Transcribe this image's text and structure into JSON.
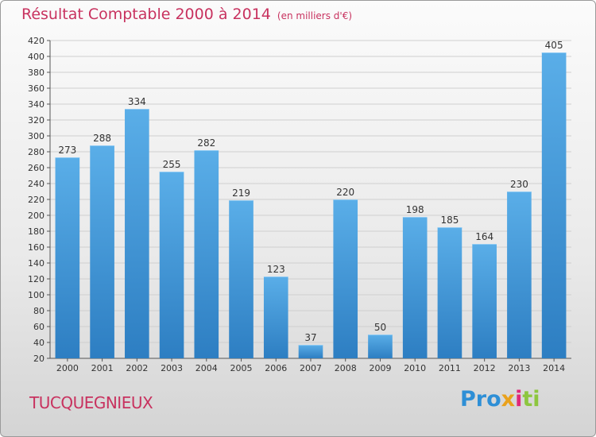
{
  "header": {
    "title": "Résultat Comptable 2000 à 2014",
    "subtitle": "(en milliers d'€)"
  },
  "footer": {
    "commune": "TUCQUEGNIEUX",
    "brand": [
      "Pro",
      "x",
      "i",
      "ti"
    ]
  },
  "colors": {
    "title": "#c8325f",
    "bar_top": "#5aaee8",
    "bar_bottom": "#2d7ec2",
    "grid": "#cfcfcf",
    "axis": "#555555"
  },
  "chart_data": {
    "type": "bar",
    "title": "Résultat Comptable 2000 à 2014",
    "subtitle": "(en milliers d'€)",
    "categories": [
      "2000",
      "2001",
      "2002",
      "2003",
      "2004",
      "2005",
      "2006",
      "2007",
      "2008",
      "2009",
      "2010",
      "2011",
      "2012",
      "2013",
      "2014"
    ],
    "values": [
      273,
      288,
      334,
      255,
      282,
      219,
      123,
      37,
      220,
      50,
      198,
      185,
      164,
      230,
      405
    ],
    "ylim": [
      20,
      420
    ],
    "yticks": [
      20,
      40,
      60,
      80,
      100,
      120,
      140,
      160,
      180,
      200,
      220,
      240,
      260,
      280,
      300,
      320,
      340,
      360,
      380,
      400,
      420
    ],
    "grid": true,
    "data_labels": true,
    "legend": "none"
  }
}
